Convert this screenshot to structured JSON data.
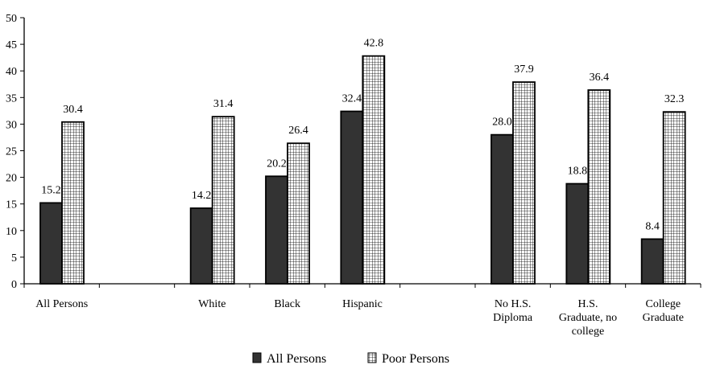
{
  "chart_data": {
    "type": "bar",
    "title": "",
    "xlabel": "",
    "ylabel": "",
    "ylim": [
      0,
      50
    ],
    "yticks": [
      0,
      5,
      10,
      15,
      20,
      25,
      30,
      35,
      40,
      45,
      50
    ],
    "grid": false,
    "legend_placement": "bottom",
    "categories": [
      [
        "All Persons"
      ],
      [],
      [
        "White"
      ],
      [
        "Black"
      ],
      [
        "Hispanic"
      ],
      [],
      [
        "No H.S.",
        "Diploma"
      ],
      [
        "H.S.",
        "Graduate, no",
        "college"
      ],
      [
        "College",
        "Graduate"
      ]
    ],
    "series": [
      {
        "name": "All Persons",
        "color": "#333333",
        "pattern": "solid",
        "values": [
          15.2,
          null,
          14.2,
          20.2,
          32.4,
          null,
          28.0,
          18.8,
          8.4
        ],
        "labels": [
          "15.2",
          "",
          "14.2",
          "20.2",
          "32.4",
          "",
          "28.0",
          "18.8",
          "8.4"
        ]
      },
      {
        "name": "Poor Persons",
        "color": "#ffffff",
        "pattern": "grid",
        "values": [
          30.4,
          null,
          31.4,
          26.4,
          42.8,
          null,
          37.9,
          36.4,
          32.3
        ],
        "labels": [
          "30.4",
          "",
          "31.4",
          "26.4",
          "42.8",
          "",
          "37.9",
          "36.4",
          "32.3"
        ]
      }
    ]
  }
}
